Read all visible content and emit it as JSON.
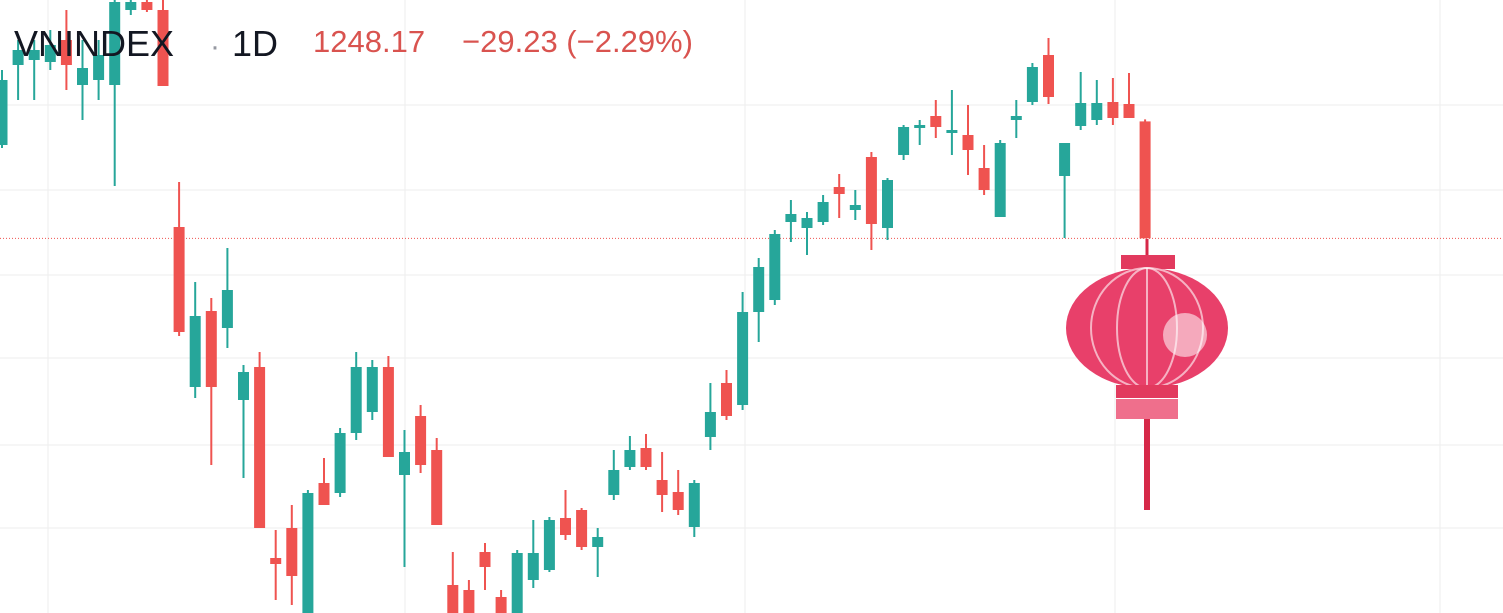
{
  "header": {
    "symbol": "VNINDEX",
    "separator": "·",
    "interval": "1D",
    "price": "1248.17",
    "change": "−29.23 (−2.29%)"
  },
  "chart_data": {
    "type": "candlestick",
    "up_color": "#26a69a",
    "down_color": "#ef5350",
    "ylim": [
      1154.5,
      1307.75
    ],
    "last_price_line": true,
    "open": [
      1271.5,
      1291.5,
      1292.75,
      1292.25,
      1297.75,
      1286.5,
      1287.75,
      1286.5,
      1305.25,
      1307.25,
      1305.25,
      1251.0,
      1211.0,
      1230.0,
      1225.75,
      1207.75,
      1216.0,
      1168.25,
      1175.75,
      1154.5,
      1187.0,
      1184.5,
      1199.5,
      1204.75,
      1216.0,
      1189.0,
      1203.75,
      1195.25,
      1161.5,
      1160.25,
      1169.75,
      1158.5,
      1154.5,
      1162.75,
      1165.25,
      1178.25,
      1180.25,
      1171.0,
      1184.0,
      1191.0,
      1195.75,
      1187.75,
      1184.75,
      1176.0,
      1198.5,
      1212.0,
      1206.5,
      1229.75,
      1232.75,
      1252.25,
      1250.75,
      1252.25,
      1261.0,
      1255.25,
      1268.5,
      1250.75,
      1269.0,
      1275.75,
      1278.75,
      1274.5,
      1274.0,
      1265.75,
      1253.5,
      1277.75,
      1282.25,
      1294.0,
      1263.75,
      1276.25,
      1277.75,
      1282.25,
      1281.75,
      1277.4
    ],
    "high": [
      1290.25,
      1297.75,
      1297.75,
      1300.25,
      1305.25,
      1297.75,
      1297.75,
      1307.75,
      1307.75,
      1307.75,
      1307.75,
      1262.25,
      1237.25,
      1233.25,
      1245.75,
      1216.5,
      1219.75,
      1175.25,
      1181.5,
      1185.25,
      1193.25,
      1200.75,
      1219.75,
      1217.75,
      1218.75,
      1200.25,
      1206.5,
      1198.25,
      1169.75,
      1162.75,
      1172.0,
      1160.25,
      1170.25,
      1177.75,
      1178.5,
      1185.25,
      1180.75,
      1175.75,
      1195.25,
      1198.75,
      1199.25,
      1194.75,
      1190.25,
      1187.75,
      1212.0,
      1215.25,
      1234.75,
      1243.25,
      1250.25,
      1257.75,
      1254.75,
      1259.0,
      1264.25,
      1260.25,
      1269.75,
      1263.25,
      1276.5,
      1277.75,
      1282.75,
      1285.25,
      1281.5,
      1271.5,
      1272.75,
      1282.75,
      1292.0,
      1298.25,
      1272.0,
      1289.75,
      1287.75,
      1288.25,
      1289.5,
      1277.9
    ],
    "low": [
      1270.75,
      1282.75,
      1282.75,
      1290.25,
      1285.25,
      1277.75,
      1282.75,
      1261.25,
      1304.0,
      1304.75,
      1286.25,
      1223.75,
      1208.25,
      1191.5,
      1220.75,
      1188.25,
      1175.75,
      1157.75,
      1156.5,
      1154.5,
      1181.5,
      1183.5,
      1197.75,
      1202.75,
      1193.5,
      1166.0,
      1189.5,
      1176.5,
      1154.5,
      1154.5,
      1160.25,
      1154.5,
      1154.5,
      1160.75,
      1164.75,
      1172.75,
      1170.25,
      1163.5,
      1182.75,
      1190.25,
      1190.25,
      1179.75,
      1179.0,
      1173.5,
      1195.25,
      1202.75,
      1205.25,
      1222.25,
      1231.5,
      1247.25,
      1244.0,
      1251.5,
      1253.25,
      1252.75,
      1245.25,
      1247.75,
      1267.75,
      1271.5,
      1273.25,
      1269.0,
      1264.0,
      1259.0,
      1253.5,
      1273.25,
      1281.5,
      1281.75,
      1248.25,
      1275.25,
      1276.5,
      1276.5,
      1278.25,
      1248.17
    ],
    "close": [
      1287.75,
      1295.25,
      1295.25,
      1296.5,
      1291.5,
      1290.75,
      1294.0,
      1307.25,
      1307.25,
      1305.25,
      1286.25,
      1224.75,
      1228.75,
      1211.0,
      1235.25,
      1214.75,
      1175.75,
      1166.75,
      1163.75,
      1184.5,
      1181.5,
      1199.5,
      1216.0,
      1216.0,
      1193.5,
      1194.75,
      1191.5,
      1176.5,
      1154.5,
      1154.5,
      1166.0,
      1154.5,
      1169.5,
      1169.5,
      1177.75,
      1174.0,
      1171.0,
      1173.5,
      1190.25,
      1195.25,
      1191.0,
      1184.0,
      1180.25,
      1187.0,
      1204.75,
      1203.75,
      1229.75,
      1241.0,
      1249.25,
      1254.25,
      1253.25,
      1257.25,
      1259.25,
      1256.5,
      1251.75,
      1262.75,
      1276.0,
      1276.5,
      1276.0,
      1275.25,
      1270.25,
      1260.25,
      1272.0,
      1278.75,
      1291.0,
      1283.5,
      1272.0,
      1282.0,
      1282.0,
      1278.25,
      1278.25,
      1248.17
    ]
  }
}
